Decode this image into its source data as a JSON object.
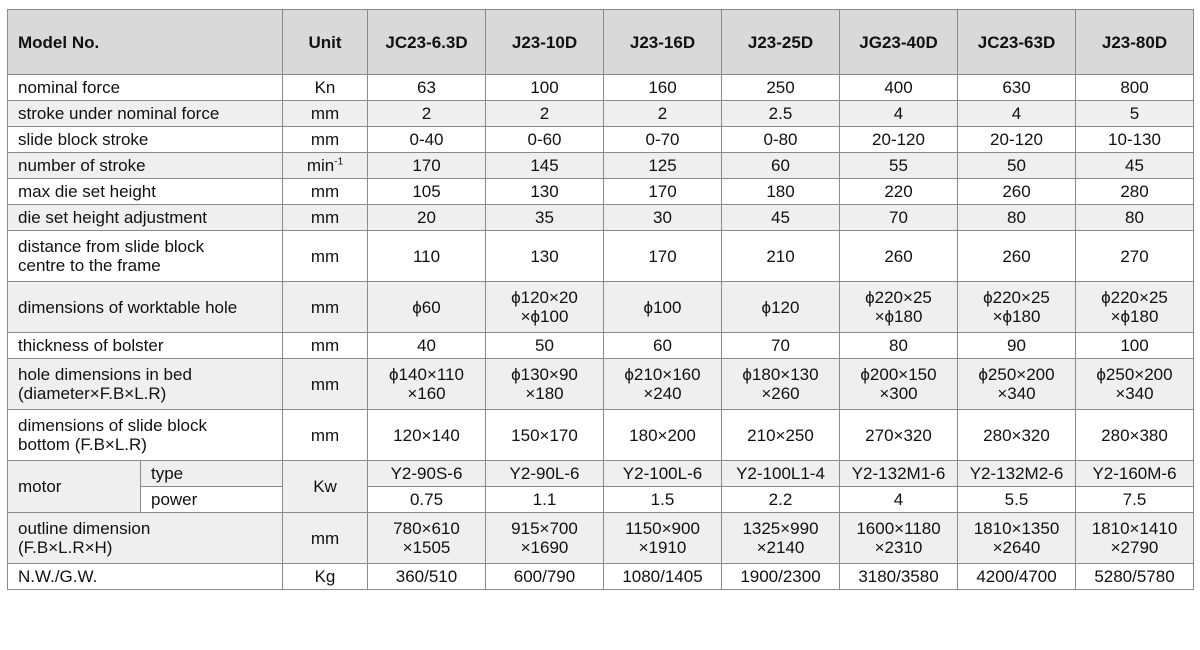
{
  "header": {
    "label": "Model No.",
    "unit": "Unit",
    "models": [
      "JC23-6.3D",
      "J23-10D",
      "J23-16D",
      "J23-25D",
      "JG23-40D",
      "JC23-63D",
      "J23-80D"
    ]
  },
  "rows": [
    {
      "label": "nominal force",
      "unit": "Kn",
      "values": [
        "63",
        "100",
        "160",
        "250",
        "400",
        "630",
        "800"
      ]
    },
    {
      "label": "stroke under nominal force",
      "unit": "mm",
      "values": [
        "2",
        "2",
        "2",
        "2.5",
        "4",
        "4",
        "5"
      ]
    },
    {
      "label": "slide block stroke",
      "unit": "mm",
      "values": [
        "0-40",
        "0-60",
        "0-70",
        "0-80",
        "20-120",
        "20-120",
        "10-130"
      ]
    },
    {
      "label": "number of stroke",
      "unit": "min",
      "unit_sup": "-1",
      "values": [
        "170",
        "145",
        "125",
        "60",
        "55",
        "50",
        "45"
      ]
    },
    {
      "label": "max die set height",
      "unit": "mm",
      "values": [
        "105",
        "130",
        "170",
        "180",
        "220",
        "260",
        "280"
      ]
    },
    {
      "label": "die set height adjustment",
      "unit": "mm",
      "values": [
        "20",
        "35",
        "30",
        "45",
        "70",
        "80",
        "80"
      ]
    },
    {
      "label": "distance from slide block",
      "label2": "centre to the frame",
      "unit": "mm",
      "values": [
        "110",
        "130",
        "170",
        "210",
        "260",
        "260",
        "270"
      ]
    },
    {
      "label": "dimensions of worktable hole",
      "unit": "mm",
      "values": [
        "ϕ60",
        "ϕ120×20",
        "ϕ100",
        "ϕ120",
        "ϕ220×25",
        "ϕ220×25",
        "ϕ220×25"
      ],
      "values2": [
        "",
        "×ϕ100",
        "",
        "",
        "×ϕ180",
        "×ϕ180",
        "×ϕ180"
      ]
    },
    {
      "label": "thickness of bolster",
      "unit": "mm",
      "values": [
        "40",
        "50",
        "60",
        "70",
        "80",
        "90",
        "100"
      ]
    },
    {
      "label": "hole dimensions in bed",
      "label2": "(diameter×F.B×L.R)",
      "unit": "mm",
      "values": [
        "ϕ140×110",
        "ϕ130×90",
        "ϕ210×160",
        "ϕ180×130",
        "ϕ200×150",
        "ϕ250×200",
        "ϕ250×200"
      ],
      "values2": [
        "×160",
        "×180",
        "×240",
        "×260",
        "×300",
        "×340",
        "×340"
      ]
    },
    {
      "label": "dimensions of slide block",
      "label2": "bottom (F.B×L.R)",
      "unit": "mm",
      "values": [
        "120×140",
        "150×170",
        "180×200",
        "210×250",
        "270×320",
        "280×320",
        "280×380"
      ]
    },
    {
      "label": "motor",
      "sub": "type",
      "unit": "Kw",
      "values": [
        "Y2-90S-6",
        "Y2-90L-6",
        "Y2-100L-6",
        "Y2-100L1-4",
        "Y2-132M1-6",
        "Y2-132M2-6",
        "Y2-160M-6"
      ]
    },
    {
      "sub": "power",
      "values": [
        "0.75",
        "1.1",
        "1.5",
        "2.2",
        "4",
        "5.5",
        "7.5"
      ]
    },
    {
      "label": "outline dimension",
      "label2": "(F.B×L.R×H)",
      "unit": "mm",
      "values": [
        "780×610",
        "915×700",
        "1150×900",
        "1325×990",
        "1600×1180",
        "1810×1350",
        "1810×1410"
      ],
      "values2": [
        "×1505",
        "×1690",
        "×1910",
        "×2140",
        "×2310",
        "×2640",
        "×2790"
      ]
    },
    {
      "label": "N.W./G.W.",
      "unit": "Kg",
      "values": [
        "360/510",
        "600/790",
        "1080/1405",
        "1900/2300",
        "3180/3580",
        "4200/4700",
        "5280/5780"
      ]
    }
  ]
}
